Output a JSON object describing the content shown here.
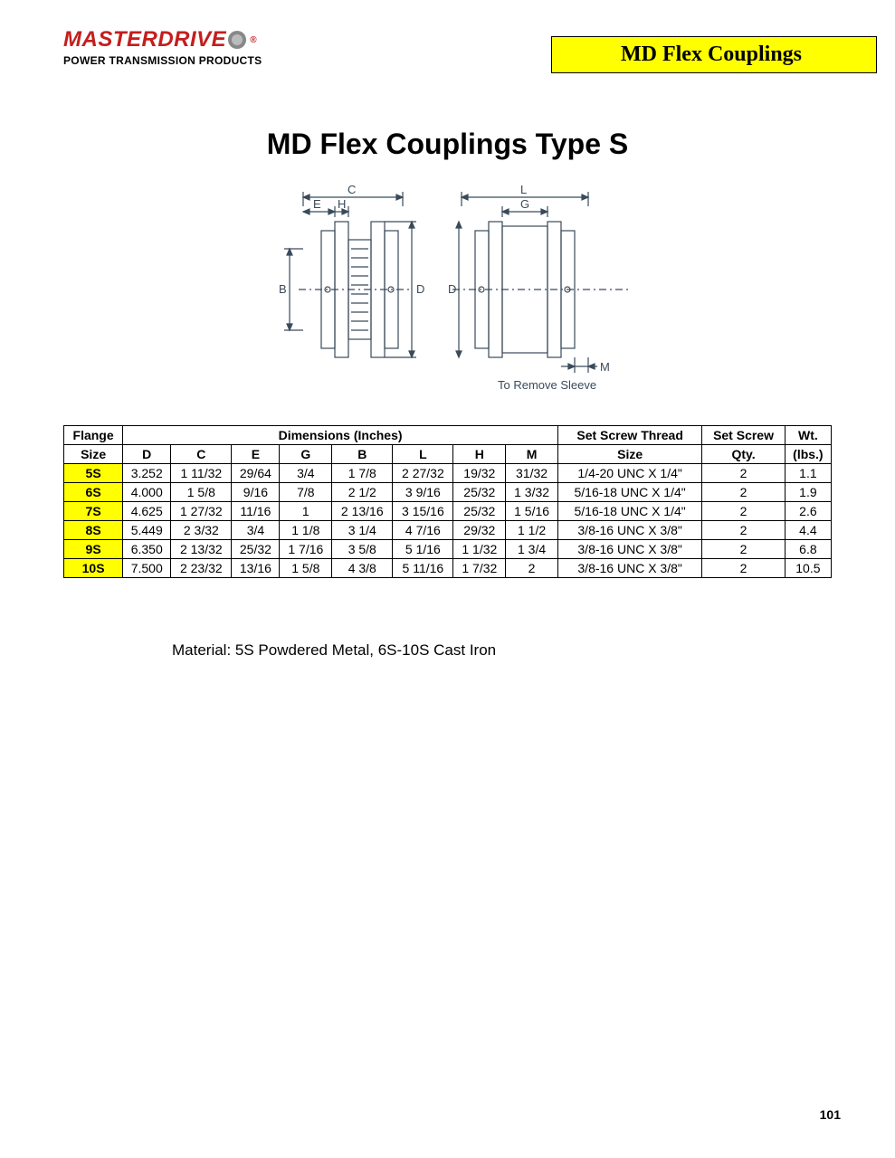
{
  "logo": {
    "brand": "MASTERDRIVE",
    "tagline": "POWER TRANSMISSION PRODUCTS",
    "reg_mark": "®",
    "brand_color": "#c41e1e"
  },
  "banner": {
    "text": "MD Flex Couplings",
    "bg_color": "#ffff00",
    "border_color": "#000000"
  },
  "title": "MD Flex Couplings Type S",
  "diagram": {
    "labels": {
      "C": "C",
      "E": "E",
      "H": "H",
      "B": "B",
      "D": "D",
      "L": "L",
      "G": "G",
      "M": "M"
    },
    "caption": "To Remove Sleeve",
    "stroke_color": "#3a4a5a",
    "stroke_width": 1.2
  },
  "table": {
    "header_row1": {
      "flange": "Flange",
      "dimensions": "Dimensions (Inches)",
      "screw_thread": "Set Screw Thread",
      "screw_qty": "Set Screw",
      "wt": "Wt."
    },
    "header_row2": {
      "flange": "Size",
      "D": "D",
      "C": "C",
      "E": "E",
      "G": "G",
      "B": "B",
      "L": "L",
      "H": "H",
      "M": "M",
      "screw_thread": "Size",
      "screw_qty": "Qty.",
      "wt": "(lbs.)"
    },
    "flange_bg": "#ffff00",
    "rows": [
      {
        "flange": "5S",
        "D": "3.252",
        "C": "1 11/32",
        "E": "29/64",
        "G": "3/4",
        "B": "1 7/8",
        "L": "2 27/32",
        "H": "19/32",
        "M": "31/32",
        "thread": "1/4-20 UNC X 1/4\"",
        "qty": "2",
        "wt": "1.1"
      },
      {
        "flange": "6S",
        "D": "4.000",
        "C": "1 5/8",
        "E": "9/16",
        "G": "7/8",
        "B": "2 1/2",
        "L": "3 9/16",
        "H": "25/32",
        "M": "1 3/32",
        "thread": "5/16-18 UNC X 1/4\"",
        "qty": "2",
        "wt": "1.9"
      },
      {
        "flange": "7S",
        "D": "4.625",
        "C": "1 27/32",
        "E": "11/16",
        "G": "1",
        "B": "2 13/16",
        "L": "3 15/16",
        "H": "25/32",
        "M": "1 5/16",
        "thread": "5/16-18 UNC X 1/4\"",
        "qty": "2",
        "wt": "2.6"
      },
      {
        "flange": "8S",
        "D": "5.449",
        "C": "2 3/32",
        "E": "3/4",
        "G": "1 1/8",
        "B": "3 1/4",
        "L": "4 7/16",
        "H": "29/32",
        "M": "1 1/2",
        "thread": "3/8-16 UNC X 3/8\"",
        "qty": "2",
        "wt": "4.4"
      },
      {
        "flange": "9S",
        "D": "6.350",
        "C": "2 13/32",
        "E": "25/32",
        "G": "1 7/16",
        "B": "3 5/8",
        "L": "5 1/16",
        "H": "1 1/32",
        "M": "1 3/4",
        "thread": "3/8-16 UNC X 3/8\"",
        "qty": "2",
        "wt": "6.8"
      },
      {
        "flange": "10S",
        "D": "7.500",
        "C": "2 23/32",
        "E": "13/16",
        "G": "1 5/8",
        "B": "4 3/8",
        "L": "5 11/16",
        "H": "1 7/32",
        "M": "2",
        "thread": "3/8-16 UNC X 3/8\"",
        "qty": "2",
        "wt": "10.5"
      }
    ]
  },
  "material_note": "Material: 5S Powdered Metal, 6S-10S Cast Iron",
  "page_number": "101"
}
